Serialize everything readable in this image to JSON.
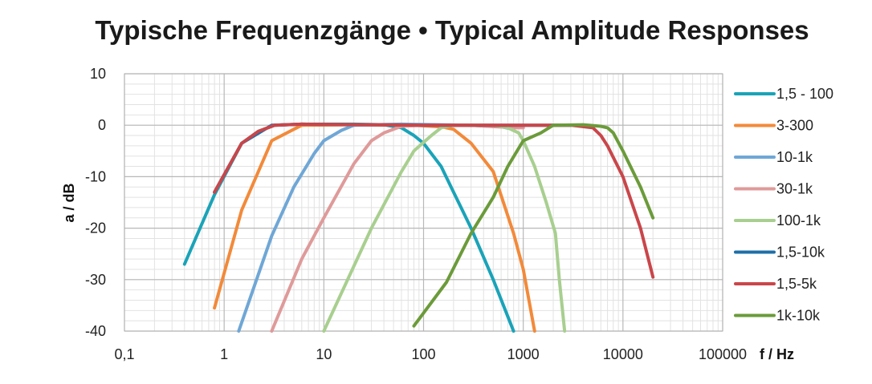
{
  "chart_data": {
    "type": "line",
    "title": "Typische Frequenzgänge • Typical Amplitude Responses",
    "xlabel": "f / Hz",
    "ylabel": "a / dB",
    "x_scale": "log",
    "xlim": [
      0.1,
      100000
    ],
    "ylim": [
      -40,
      10
    ],
    "x_ticks": [
      0.1,
      1,
      10,
      100,
      1000,
      10000,
      100000
    ],
    "x_tick_labels": [
      "0,1",
      "1",
      "10",
      "100",
      "1000",
      "10000",
      "100000"
    ],
    "y_ticks": [
      10,
      0,
      -10,
      -20,
      -30,
      -40
    ],
    "y_tick_labels": [
      "10",
      "0",
      "-10",
      "-20",
      "-30",
      "-40"
    ],
    "grid": true,
    "legend_position": "right",
    "series": [
      {
        "name": "1,5 - 100",
        "color": "#1aa3b8",
        "points": [
          [
            0.4,
            -27
          ],
          [
            0.8,
            -13.5
          ],
          [
            1.5,
            -3.5
          ],
          [
            2.2,
            -1.2
          ],
          [
            3.2,
            0
          ],
          [
            6,
            0.2
          ],
          [
            20,
            0.2
          ],
          [
            40,
            0.1
          ],
          [
            60,
            -0.5
          ],
          [
            80,
            -2
          ],
          [
            100,
            -3.5
          ],
          [
            150,
            -8
          ],
          [
            200,
            -13
          ],
          [
            300,
            -20
          ],
          [
            500,
            -30
          ],
          [
            800,
            -40
          ]
        ]
      },
      {
        "name": "3-300",
        "color": "#f28a3a",
        "points": [
          [
            0.8,
            -35.5
          ],
          [
            1.5,
            -16.5
          ],
          [
            3,
            -3
          ],
          [
            6,
            0
          ],
          [
            20,
            0.1
          ],
          [
            80,
            0
          ],
          [
            150,
            -0.3
          ],
          [
            200,
            -0.8
          ],
          [
            300,
            -3.5
          ],
          [
            500,
            -9
          ],
          [
            800,
            -21
          ],
          [
            1000,
            -28
          ],
          [
            1300,
            -40
          ]
        ]
      },
      {
        "name": "10-1k",
        "color": "#6fa7d6",
        "points": [
          [
            1.4,
            -40
          ],
          [
            3,
            -21.5
          ],
          [
            5,
            -12
          ],
          [
            8,
            -5.5
          ],
          [
            10,
            -3
          ],
          [
            15,
            -1
          ],
          [
            20,
            0
          ],
          [
            60,
            0.2
          ],
          [
            300,
            0
          ],
          [
            600,
            -0.3
          ],
          [
            800,
            -0.8
          ]
        ]
      },
      {
        "name": "30-1k",
        "color": "#df9a9a",
        "points": [
          [
            3,
            -40
          ],
          [
            6,
            -26
          ],
          [
            10,
            -18
          ],
          [
            20,
            -7.5
          ],
          [
            30,
            -3
          ],
          [
            40,
            -1.5
          ],
          [
            60,
            -0.2
          ],
          [
            100,
            0
          ],
          [
            300,
            0
          ],
          [
            800,
            -0.5
          ],
          [
            1000,
            -0.5
          ]
        ]
      },
      {
        "name": "100-1k",
        "color": "#a8cf8f",
        "points": [
          [
            10,
            -40
          ],
          [
            30,
            -20
          ],
          [
            60,
            -9
          ],
          [
            80,
            -5
          ],
          [
            120,
            -2
          ],
          [
            150,
            -0.5
          ],
          [
            200,
            0
          ],
          [
            500,
            0
          ],
          [
            700,
            -0.5
          ],
          [
            900,
            -1.5
          ],
          [
            1000,
            -3
          ],
          [
            1300,
            -8
          ],
          [
            1700,
            -15
          ],
          [
            2100,
            -21
          ],
          [
            2300,
            -30
          ],
          [
            2600,
            -40
          ]
        ]
      },
      {
        "name": "1,5-10k",
        "color": "#1f6fa8",
        "points": [
          [
            0.8,
            -13
          ],
          [
            1.5,
            -3.5
          ],
          [
            3,
            0
          ],
          [
            6,
            0.2
          ],
          [
            100,
            0
          ],
          [
            1000,
            0
          ],
          [
            3000,
            0
          ]
        ]
      },
      {
        "name": "1,5-5k",
        "color": "#c9464a",
        "points": [
          [
            0.8,
            -13
          ],
          [
            1.5,
            -3.5
          ],
          [
            2.2,
            -1.2
          ],
          [
            3.2,
            0
          ],
          [
            6,
            0.2
          ],
          [
            100,
            0
          ],
          [
            1000,
            0
          ],
          [
            3000,
            0
          ],
          [
            5000,
            -0.5
          ],
          [
            6000,
            -2
          ],
          [
            7000,
            -4
          ],
          [
            10000,
            -10
          ],
          [
            15000,
            -20
          ],
          [
            20000,
            -29.5
          ]
        ]
      },
      {
        "name": "1k-10k",
        "color": "#6b9b3a",
        "points": [
          [
            80,
            -39
          ],
          [
            170,
            -30.5
          ],
          [
            300,
            -21
          ],
          [
            500,
            -14
          ],
          [
            700,
            -8
          ],
          [
            1000,
            -3
          ],
          [
            1500,
            -1.5
          ],
          [
            2000,
            0
          ],
          [
            4000,
            0.1
          ],
          [
            6000,
            -0.2
          ],
          [
            7000,
            -0.5
          ],
          [
            8000,
            -1.5
          ],
          [
            10000,
            -5
          ],
          [
            15000,
            -12
          ],
          [
            20000,
            -18
          ]
        ]
      }
    ]
  }
}
